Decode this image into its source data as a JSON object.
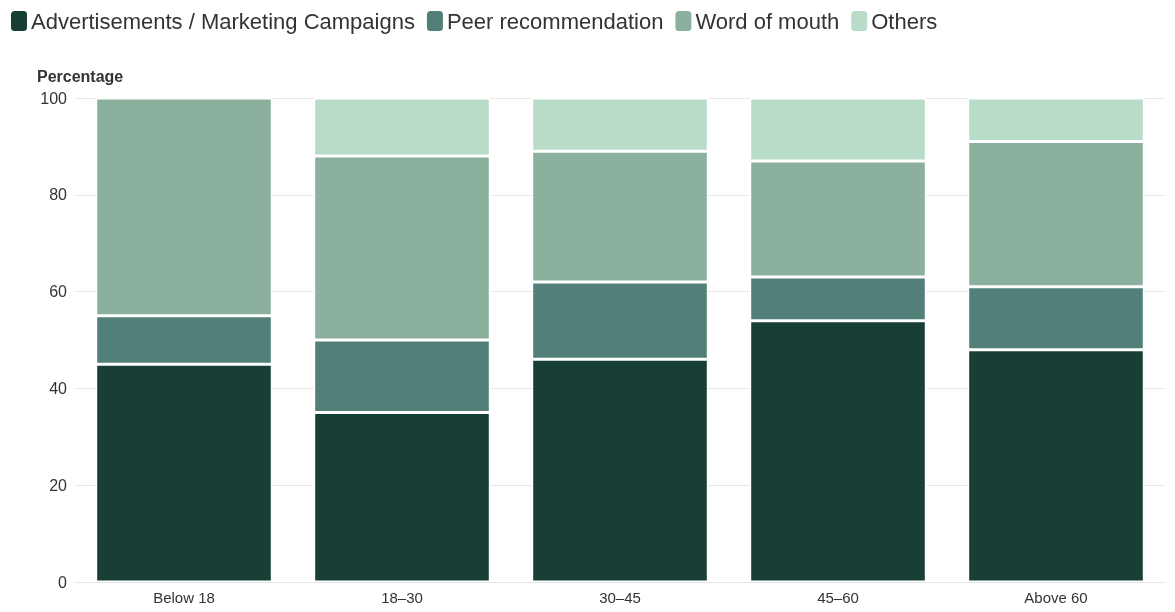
{
  "chart_data": {
    "type": "bar",
    "stacked": true,
    "ylabel": "Percentage",
    "categories": [
      "Below 18",
      "18–30",
      "30–45",
      "45–60",
      "Above 60"
    ],
    "series": [
      {
        "name": "Advertisements / Marketing Campaigns",
        "color": "#173f35",
        "values": [
          45,
          35,
          46,
          54,
          48
        ]
      },
      {
        "name": "Peer recommendation",
        "color": "#527f78",
        "values": [
          10,
          15,
          16,
          9,
          13
        ]
      },
      {
        "name": "Word of mouth",
        "color": "#8cb09e",
        "values": [
          45,
          38,
          27,
          24,
          30
        ]
      },
      {
        "name": "Others",
        "color": "#b8dcc8",
        "values": [
          null,
          12,
          11,
          13,
          9
        ]
      }
    ],
    "ylim": [
      0,
      100
    ],
    "yticks": [
      0,
      20,
      40,
      60,
      80,
      100
    ],
    "grid": "y",
    "legend": "top left"
  }
}
